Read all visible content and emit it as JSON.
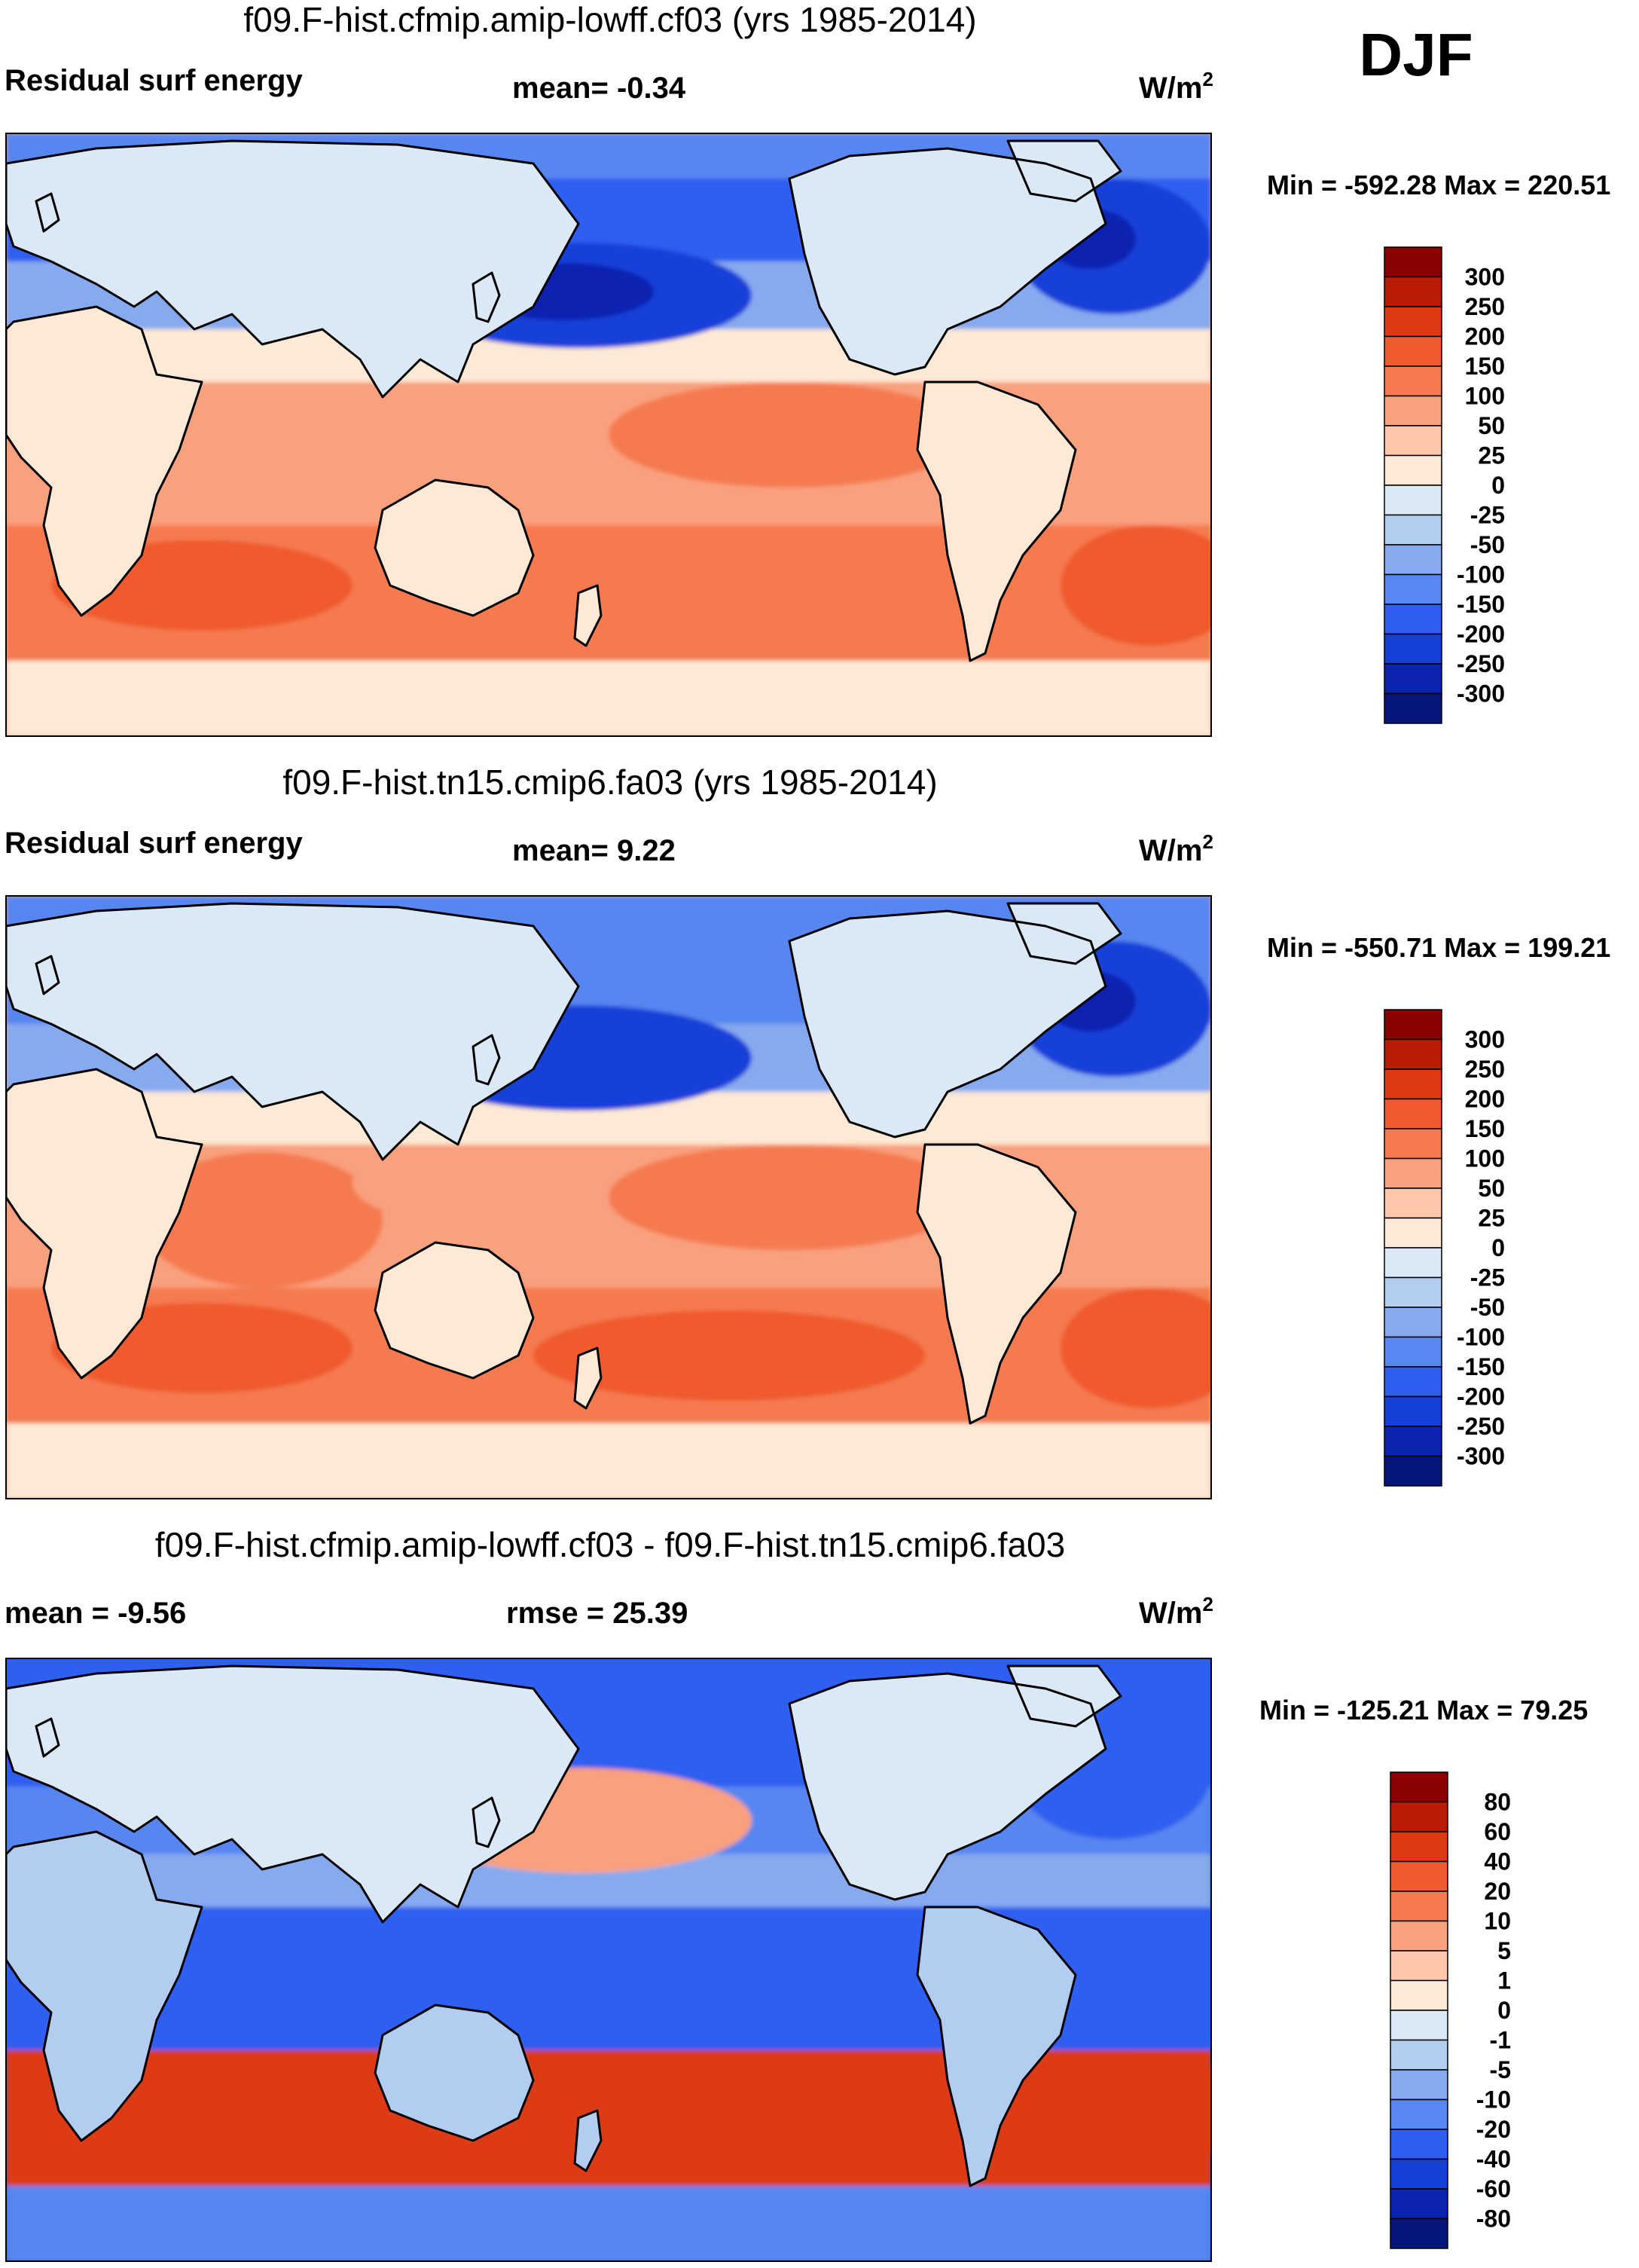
{
  "season": "DJF",
  "colors": {
    "land_line": "#000000",
    "frame": "#000000"
  },
  "chart_data": [
    {
      "type": "heatmap",
      "title": "f09.F-hist.cfmip.amip-lowff.cf03 (yrs 1985-2014)",
      "left_label": "Residual surf energy",
      "center_label": "mean=  -0.34",
      "units": "W/m",
      "units_sup": "2",
      "minmax": "Min = -592.28 Max = 220.51",
      "stats": {
        "mean": -0.34,
        "min": -592.28,
        "max": 220.51
      },
      "colorbar_labels": [
        "300",
        "250",
        "200",
        "150",
        "100",
        "50",
        "25",
        "0",
        "-25",
        "-50",
        "-100",
        "-150",
        "-200",
        "-250",
        "-300"
      ],
      "colorbar_colors": [
        "#8b0000",
        "#b81c04",
        "#dc3a12",
        "#f05a2e",
        "#f57a50",
        "#f9a07e",
        "#fcc7aa",
        "#fde9d6",
        "#dbe9f7",
        "#b3cdf0",
        "#86aaf0",
        "#5986f0",
        "#2f5ff0",
        "#163fd8",
        "#0a24b0",
        "#06157a"
      ],
      "pattern": {
        "north_ocean": -160,
        "north_pacific": -230,
        "north_atlantic": -240,
        "tropics": 90,
        "south_ocean": 130,
        "antarctic": 20,
        "land": -5,
        "land_south": 10
      }
    },
    {
      "type": "heatmap",
      "title": "f09.F-hist.tn15.cmip6.fa03 (yrs 1985-2014)",
      "left_label": "Residual surf energy",
      "center_label": "mean=   9.22",
      "units": "W/m",
      "units_sup": "2",
      "minmax": "Min = -550.71 Max = 199.21",
      "stats": {
        "mean": 9.22,
        "min": -550.71,
        "max": 199.21
      },
      "colorbar_labels": [
        "300",
        "250",
        "200",
        "150",
        "100",
        "50",
        "25",
        "0",
        "-25",
        "-50",
        "-100",
        "-150",
        "-200",
        "-250",
        "-300"
      ],
      "colorbar_colors": [
        "#8b0000",
        "#b81c04",
        "#dc3a12",
        "#f05a2e",
        "#f57a50",
        "#f9a07e",
        "#fcc7aa",
        "#fde9d6",
        "#dbe9f7",
        "#b3cdf0",
        "#86aaf0",
        "#5986f0",
        "#2f5ff0",
        "#163fd8",
        "#0a24b0",
        "#06157a"
      ],
      "pattern": {
        "north_ocean": -140,
        "north_pacific": -210,
        "north_atlantic": -220,
        "tropics": 100,
        "south_ocean": 140,
        "antarctic": 20,
        "land": -5,
        "land_south": 10
      }
    },
    {
      "type": "heatmap",
      "title": "f09.F-hist.cfmip.amip-lowff.cf03 - f09.F-hist.tn15.cmip6.fa03",
      "left_label": "mean =  -9.56",
      "center_label": "rmse =  25.39",
      "units": "W/m",
      "units_sup": "2",
      "minmax": "Min = -125.21 Max =  79.25",
      "stats": {
        "mean": -9.56,
        "rmse": 25.39,
        "min": -125.21,
        "max": 79.25
      },
      "colorbar_labels": [
        "80",
        "60",
        "40",
        "20",
        "10",
        "5",
        "1",
        "0",
        "-1",
        "-5",
        "-10",
        "-20",
        "-40",
        "-60",
        "-80"
      ],
      "colorbar_colors": [
        "#8b0000",
        "#b81c04",
        "#dc3a12",
        "#f05a2e",
        "#f57a50",
        "#f9a07e",
        "#fcc7aa",
        "#fde9d6",
        "#dbe9f7",
        "#b3cdf0",
        "#86aaf0",
        "#5986f0",
        "#2f5ff0",
        "#163fd8",
        "#0a24b0",
        "#06157a"
      ],
      "pattern": {
        "north_ocean": -25,
        "north_pacific": 8,
        "north_atlantic": -30,
        "tropics": -30,
        "south_ocean": 45,
        "antarctic": -15,
        "land": 0,
        "land_south": -3
      }
    }
  ]
}
